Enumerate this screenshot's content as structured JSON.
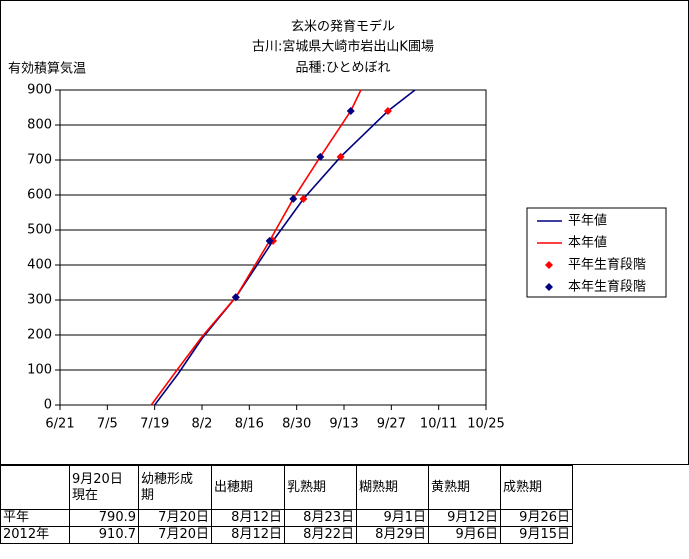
{
  "chart_data": {
    "type": "line",
    "title": "玄米の発育モデル",
    "subtitle": [
      "古川:宮城県大崎市岩出山K圃場",
      "品種:ひとめぼれ"
    ],
    "y_label": "有効積算気温",
    "xlim": [
      "6/21",
      "10/25"
    ],
    "xticks": [
      "6/21",
      "7/5",
      "7/19",
      "8/2",
      "8/16",
      "8/30",
      "9/13",
      "9/27",
      "10/11",
      "10/25"
    ],
    "ylim": [
      0,
      900
    ],
    "yticks": [
      0,
      100,
      200,
      300,
      400,
      500,
      600,
      700,
      800,
      900
    ],
    "grid": true,
    "series": [
      {
        "name": "平年値",
        "color": "#000080",
        "mark": "line",
        "x": [
          "7/19",
          "7/26",
          "8/2",
          "8/12",
          "8/23",
          "9/1",
          "9/12",
          "9/26",
          "10/4"
        ],
        "values": [
          0,
          90,
          190,
          308,
          469,
          589,
          709,
          840,
          900
        ]
      },
      {
        "name": "本年値",
        "color": "#ff0000",
        "mark": "line",
        "x": [
          "7/18",
          "7/26",
          "8/2",
          "8/12",
          "8/22",
          "8/29",
          "9/6",
          "9/15",
          "9/18"
        ],
        "values": [
          0,
          105,
          195,
          308,
          469,
          589,
          709,
          840,
          900
        ]
      },
      {
        "name": "平年生育段階",
        "color": "#ff0000",
        "mark": "marker",
        "x": [
          "8/12",
          "8/23",
          "9/1",
          "9/12",
          "9/26"
        ],
        "values": [
          308,
          469,
          589,
          709,
          840
        ]
      },
      {
        "name": "本年生育段階",
        "color": "#000080",
        "mark": "marker",
        "x": [
          "8/12",
          "8/22",
          "8/29",
          "9/6",
          "9/15"
        ],
        "values": [
          308,
          469,
          589,
          709,
          840
        ]
      }
    ]
  },
  "table": {
    "header": [
      "",
      "9月20日\n現在",
      "幼穂形成\n期",
      "出穂期",
      "乳熟期",
      "糊熟期",
      "黄熟期",
      "成熟期"
    ],
    "rows": [
      [
        "平年",
        "790.9",
        "7月20日",
        "8月12日",
        "8月23日",
        "9月1日",
        "9月12日",
        "9月26日"
      ],
      [
        "2012年",
        "910.7",
        "7月20日",
        "8月12日",
        "8月22日",
        "8月29日",
        "9月6日",
        "9月15日"
      ]
    ]
  }
}
